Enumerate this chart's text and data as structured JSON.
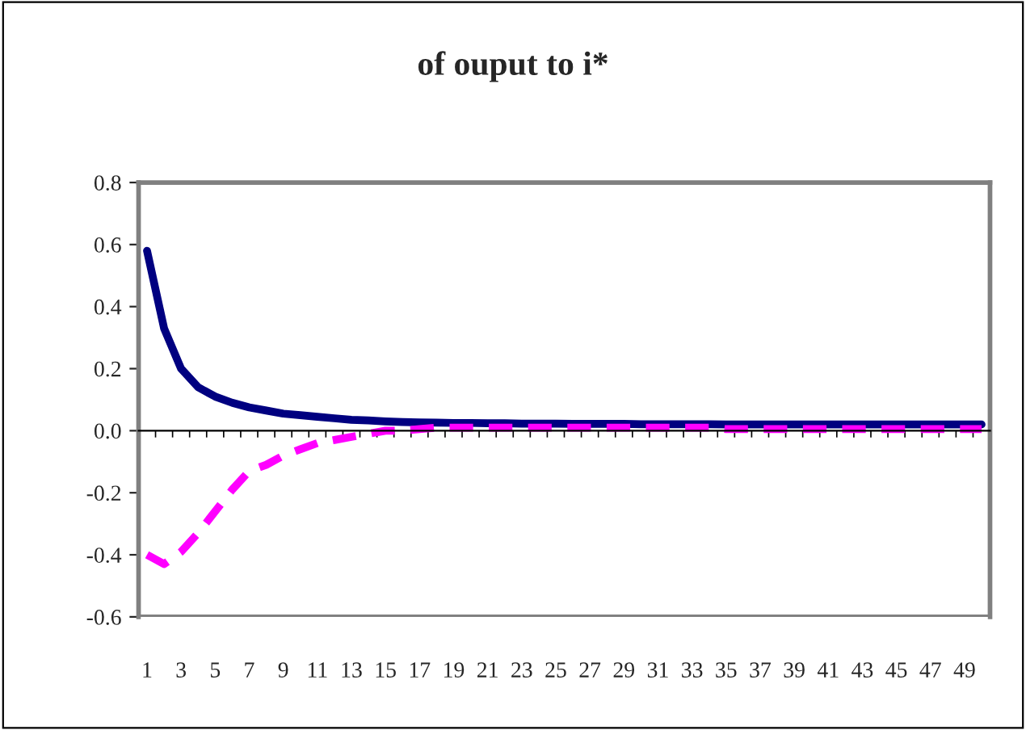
{
  "chart_data": {
    "type": "line",
    "title": "of ouput to i*",
    "categories": [
      "1",
      null,
      "3",
      null,
      "5",
      null,
      "7",
      null,
      "9",
      null,
      "11",
      null,
      "13",
      null,
      "15",
      null,
      "17",
      null,
      "19",
      null,
      "21",
      null,
      "23",
      null,
      "25",
      null,
      "27",
      null,
      "29",
      null,
      "31",
      null,
      "33",
      null,
      "35",
      null,
      "37",
      null,
      "39",
      null,
      "41",
      null,
      "43",
      null,
      "45",
      null,
      "47",
      null,
      "49",
      null
    ],
    "series": [
      {
        "color": "#000080",
        "line_style": "solid",
        "values": [
          0.58,
          0.33,
          0.2,
          0.14,
          0.11,
          0.09,
          0.075,
          0.065,
          0.055,
          0.05,
          0.045,
          0.04,
          0.035,
          0.033,
          0.03,
          0.028,
          0.027,
          0.026,
          0.025,
          0.025,
          0.024,
          0.024,
          0.023,
          0.023,
          0.023,
          0.022,
          0.022,
          0.022,
          0.022,
          0.021,
          0.021,
          0.021,
          0.021,
          0.021,
          0.02,
          0.02,
          0.02,
          0.02,
          0.02,
          0.02,
          0.02,
          0.02,
          0.02,
          0.02,
          0.02,
          0.02,
          0.02,
          0.02,
          0.02,
          0.02
        ]
      },
      {
        "color": "#ff00ff",
        "line_style": "dashed",
        "values": [
          -0.4,
          -0.43,
          -0.39,
          -0.33,
          -0.26,
          -0.19,
          -0.13,
          -0.11,
          -0.08,
          -0.06,
          -0.04,
          -0.03,
          -0.02,
          -0.01,
          0.0,
          0.0,
          0.005,
          0.01,
          0.01,
          0.01,
          0.01,
          0.01,
          0.01,
          0.01,
          0.01,
          0.01,
          0.01,
          0.01,
          0.01,
          0.01,
          0.01,
          0.01,
          0.01,
          0.01,
          0.005,
          0.005,
          0.005,
          0.005,
          0.005,
          0.005,
          0.005,
          0.005,
          0.005,
          0.005,
          0.005,
          0.005,
          0.005,
          0.005,
          0.005,
          0.005
        ]
      }
    ],
    "ylim": [
      -0.6,
      0.8
    ],
    "yticks": [
      {
        "value": -0.6,
        "label": "-0.6"
      },
      {
        "value": -0.4,
        "label": "-0.4"
      },
      {
        "value": -0.2,
        "label": "-0.2"
      },
      {
        "value": 0,
        "label": "0.0"
      },
      {
        "value": 0.2,
        "label": "0.2"
      },
      {
        "value": 0.4,
        "label": "0.4"
      },
      {
        "value": 0.6,
        "label": "0.6"
      },
      {
        "value": 0.8,
        "label": "0.8"
      }
    ],
    "legend": false
  }
}
